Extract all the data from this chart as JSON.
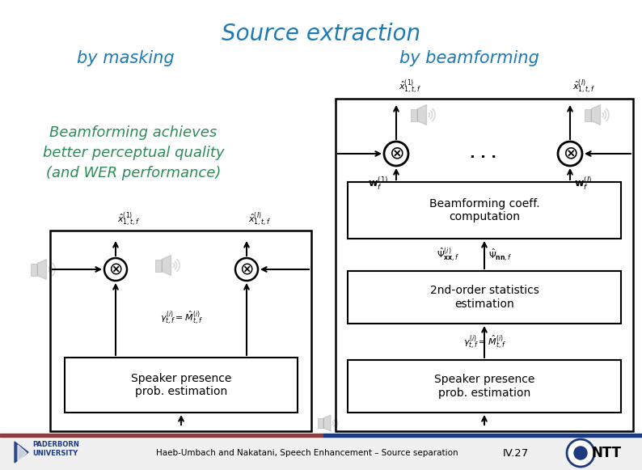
{
  "title": "Source extraction",
  "subtitle_left": "by masking",
  "subtitle_right": "by beamforming",
  "highlight_text": "Beamforming achieves\nbetter perceptual quality\n(and WER performance)",
  "highlight_color": "#2e8b57",
  "title_color": "#1e7ab0",
  "subtitle_color": "#1e7ab0",
  "bg_color": "#ffffff",
  "footer_text": "Haeb-Umbach and Nakatani, Speech Enhancement – Source separation",
  "footer_page": "IV.27",
  "footer_bar_left_color": "#8b4040",
  "footer_bar_right_color": "#1e3a7e",
  "footer_bg": "#f0f0f0"
}
